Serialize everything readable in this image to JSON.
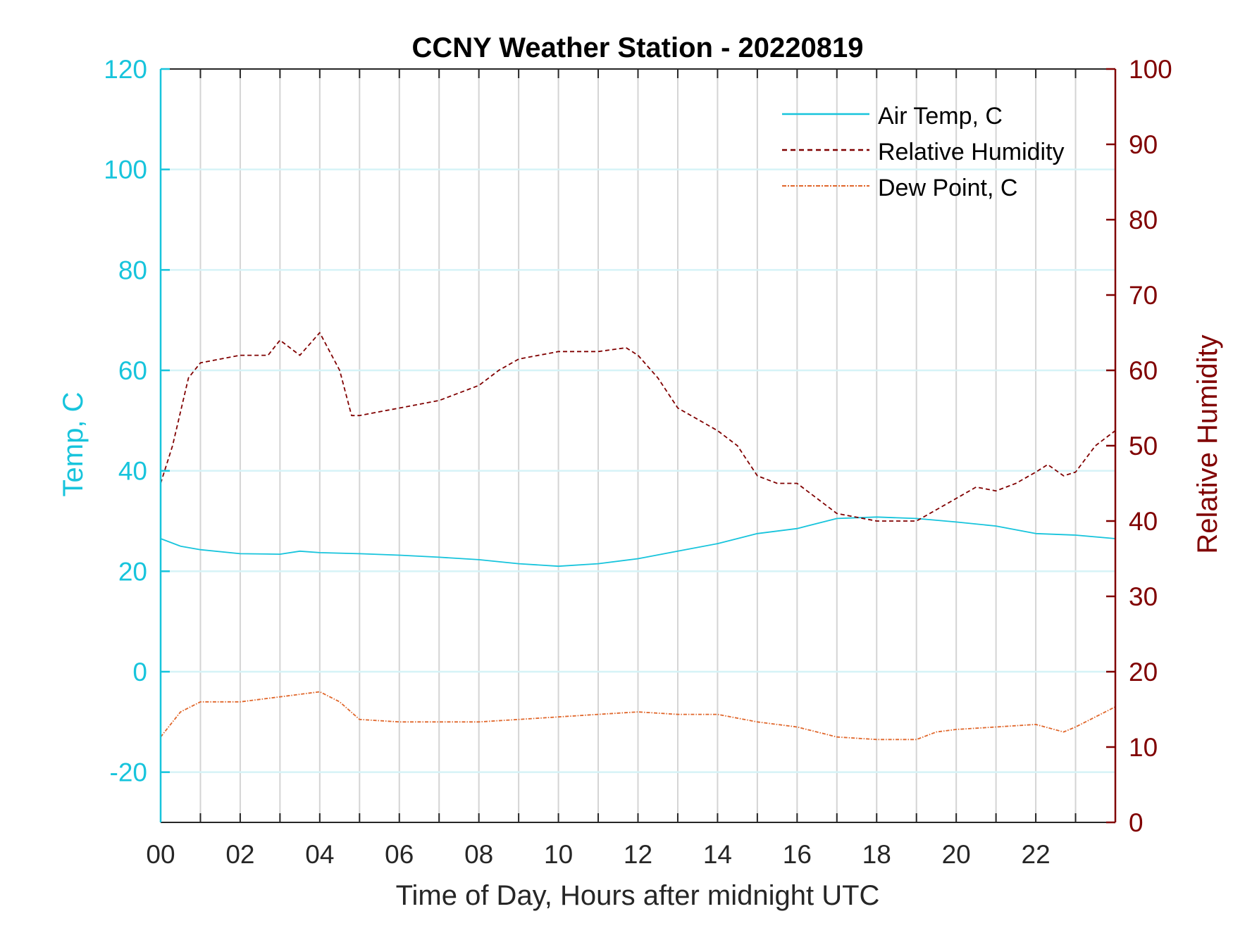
{
  "chart_data": {
    "type": "line",
    "title": "CCNY Weather Station - 20220819",
    "xlabel": "Time of Day, Hours after midnight UTC",
    "ylabel_left": "Temp, C",
    "ylabel_right": "Relative Humidity",
    "xlim": [
      0,
      24
    ],
    "ylim_left": [
      -30,
      120
    ],
    "ylim_right": [
      0,
      100
    ],
    "x_ticks": [
      0,
      2,
      4,
      6,
      8,
      10,
      12,
      14,
      16,
      18,
      20,
      22
    ],
    "x_tick_labels": [
      "00",
      "02",
      "04",
      "06",
      "08",
      "10",
      "12",
      "14",
      "16",
      "18",
      "20",
      "22"
    ],
    "y_left_ticks": [
      -20,
      0,
      20,
      40,
      60,
      80,
      100,
      120
    ],
    "y_left_tick_labels": [
      "-20",
      "0",
      "20",
      "40",
      "60",
      "80",
      "100",
      "120"
    ],
    "y_right_ticks": [
      0,
      10,
      20,
      30,
      40,
      50,
      60,
      70,
      80,
      90,
      100
    ],
    "y_right_tick_labels": [
      "0",
      "10",
      "20",
      "30",
      "40",
      "50",
      "60",
      "70",
      "80",
      "90",
      "100"
    ],
    "grid": true,
    "legend_placement": "top-right",
    "colors": {
      "left_axis": "#17c4dc",
      "right_axis": "#800000",
      "dew": "#e0662a",
      "vgrid": "#d4d4d4",
      "hgrid": "#d6f3f7"
    },
    "series": [
      {
        "name": "Air Temp, C",
        "axis": "left",
        "style": "solid",
        "color": "#17c4dc",
        "x": [
          0,
          0.5,
          1,
          2,
          3,
          3.5,
          4,
          5,
          6,
          7,
          8,
          9,
          10,
          11,
          12,
          13,
          14,
          15,
          16,
          17,
          18,
          19,
          20,
          21,
          22,
          23,
          24
        ],
        "y": [
          26.5,
          25,
          24.3,
          23.5,
          23.4,
          24,
          23.7,
          23.5,
          23.2,
          22.8,
          22.3,
          21.5,
          21,
          21.5,
          22.5,
          24,
          25.5,
          27.5,
          28.5,
          30.5,
          30.8,
          30.5,
          29.8,
          29,
          27.5,
          27.2,
          26.5
        ]
      },
      {
        "name": "Relative Humidity",
        "axis": "right",
        "style": "dashed",
        "color": "#800000",
        "x": [
          0,
          0.3,
          0.7,
          1,
          2,
          2.7,
          3,
          3.5,
          4,
          4.5,
          4.8,
          5,
          6,
          7,
          8,
          8.5,
          9,
          10,
          11,
          11.7,
          12,
          12.5,
          13,
          14,
          14.5,
          15,
          15.5,
          16,
          16.5,
          17,
          17.5,
          18,
          19,
          19.5,
          20,
          20.5,
          21,
          21.5,
          22,
          22.3,
          22.7,
          23,
          23.5,
          24
        ],
        "y": [
          45,
          50,
          59,
          61,
          62,
          62,
          64,
          62,
          65,
          60,
          54,
          54,
          55,
          56,
          58,
          60,
          61.5,
          62.5,
          62.5,
          63,
          62,
          59,
          55,
          52,
          50,
          46,
          45,
          45,
          43,
          41,
          40.5,
          40,
          40,
          41.5,
          43,
          44.5,
          44,
          45,
          46.5,
          47.5,
          46,
          46.5,
          50,
          52
        ]
      },
      {
        "name": "Dew Point, C",
        "axis": "left",
        "style": "dashdot",
        "color": "#e0662a",
        "x": [
          0,
          0.5,
          1,
          2,
          3,
          4,
          4.5,
          5,
          6,
          7,
          8,
          9,
          10,
          11,
          12,
          13,
          14,
          15,
          16,
          17,
          18,
          19,
          19.5,
          20,
          21,
          22,
          22.7,
          23,
          24
        ],
        "y": [
          -13,
          -8,
          -6,
          -6,
          -5,
          -4,
          -6,
          -9.5,
          -10,
          -10,
          -10,
          -9.5,
          -9,
          -8.5,
          -8,
          -8.5,
          -8.5,
          -10,
          -11,
          -13,
          -13.5,
          -13.5,
          -12,
          -11.5,
          -11,
          -10.5,
          -12,
          -11,
          -7
        ]
      }
    ]
  }
}
